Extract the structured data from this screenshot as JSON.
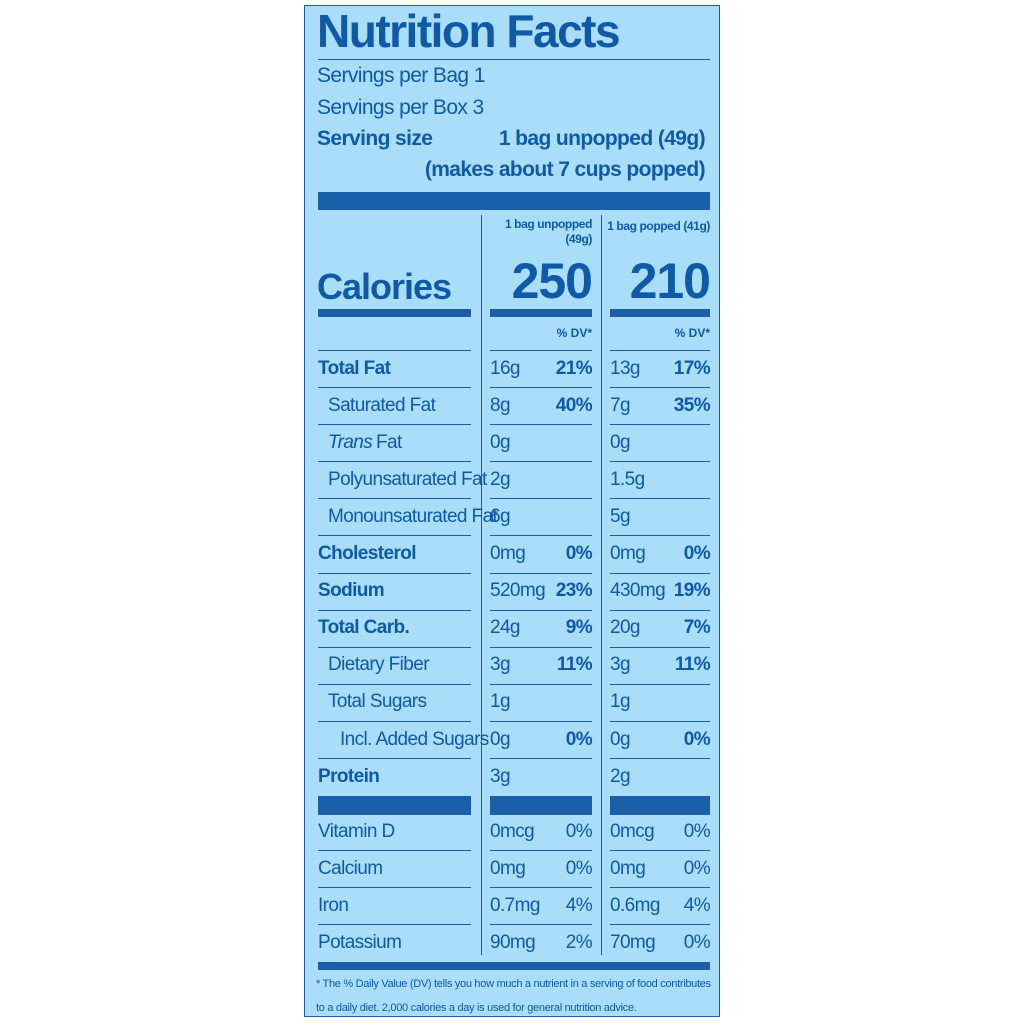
{
  "title": "Nutrition Facts",
  "servings": [
    "Servings per Bag 1",
    "Servings per Box 3"
  ],
  "serving_size": {
    "label": "Serving size",
    "value": "1 bag unpopped (49g)",
    "note": "(makes about 7 cups popped)"
  },
  "calories_label": "Calories",
  "columns": [
    {
      "header": "1 bag unpopped (49g)",
      "calories": "250",
      "dv_header": "% DV*"
    },
    {
      "header": "1 bag popped (41g)",
      "calories": "210",
      "dv_header": "% DV*"
    }
  ],
  "nutrients": [
    {
      "name": "Total Fat",
      "bold": true,
      "indent": 0,
      "values": [
        [
          "16g",
          "21%"
        ],
        [
          "13g",
          "17%"
        ]
      ]
    },
    {
      "name": "Saturated Fat",
      "bold": false,
      "indent": 1,
      "values": [
        [
          "8g",
          "40%"
        ],
        [
          "7g",
          "35%"
        ]
      ]
    },
    {
      "name_italic": "Trans",
      "name": "Fat",
      "bold": false,
      "indent": 1,
      "values": [
        [
          "0g",
          null
        ],
        [
          "0g",
          null
        ]
      ]
    },
    {
      "name": "Polyunsaturated Fat",
      "bold": false,
      "indent": 1,
      "values": [
        [
          "2g",
          null
        ],
        [
          "1.5g",
          null
        ]
      ]
    },
    {
      "name": "Monounsaturated Fat",
      "bold": false,
      "indent": 1,
      "values": [
        [
          "6g",
          null
        ],
        [
          "5g",
          null
        ]
      ]
    },
    {
      "name": "Cholesterol",
      "bold": true,
      "indent": 0,
      "values": [
        [
          "0mg",
          "0%"
        ],
        [
          "0mg",
          "0%"
        ]
      ]
    },
    {
      "name": "Sodium",
      "bold": true,
      "indent": 0,
      "values": [
        [
          "520mg",
          "23%"
        ],
        [
          "430mg",
          "19%"
        ]
      ]
    },
    {
      "name": "Total Carb.",
      "bold": true,
      "indent": 0,
      "values": [
        [
          "24g",
          "9%"
        ],
        [
          "20g",
          "7%"
        ]
      ]
    },
    {
      "name": "Dietary Fiber",
      "bold": false,
      "indent": 1,
      "values": [
        [
          "3g",
          "11%"
        ],
        [
          "3g",
          "11%"
        ]
      ]
    },
    {
      "name": "Total Sugars",
      "bold": false,
      "indent": 1,
      "values": [
        [
          "1g",
          null
        ],
        [
          "1g",
          null
        ]
      ]
    },
    {
      "name": "Incl. Added Sugars",
      "bold": false,
      "indent": 2,
      "values": [
        [
          "0g",
          "0%"
        ],
        [
          "0g",
          "0%"
        ]
      ]
    },
    {
      "name": "Protein",
      "bold": true,
      "indent": 0,
      "values": [
        [
          "3g",
          null
        ],
        [
          "2g",
          null
        ]
      ]
    }
  ],
  "vitamins": [
    {
      "name": "Vitamin D",
      "values": [
        [
          "0mcg",
          "0%"
        ],
        [
          "0mcg",
          "0%"
        ]
      ]
    },
    {
      "name": "Calcium",
      "values": [
        [
          "0mg",
          "0%"
        ],
        [
          "0mg",
          "0%"
        ]
      ]
    },
    {
      "name": "Iron",
      "values": [
        [
          "0.7mg",
          "4%"
        ],
        [
          "0.6mg",
          "4%"
        ]
      ]
    },
    {
      "name": "Potassium",
      "values": [
        [
          "90mg",
          "2%"
        ],
        [
          "70mg",
          "0%"
        ]
      ]
    }
  ],
  "footnote": "* The % Daily Value (DV) tells you how much a nutrient in a serving of food contributes to a daily diet. 2,000 calories a day is used for general nutrition advice."
}
